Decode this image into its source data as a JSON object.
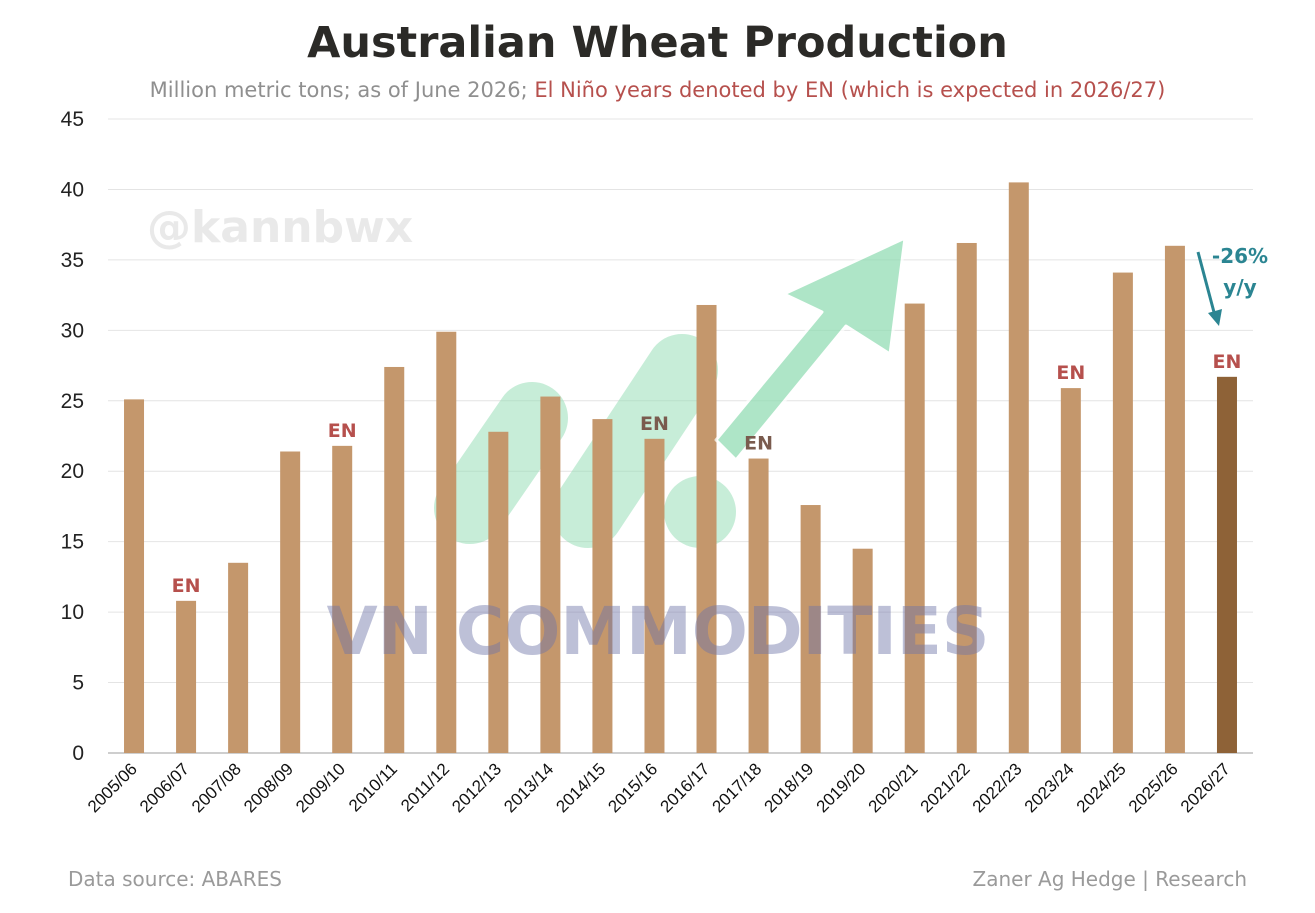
{
  "title": "Australian Wheat Production",
  "subtitle": {
    "part1": "Million metric tons; as of June 2026; ",
    "part2": "El Niño years denoted by EN (which is expected in 2026/27)"
  },
  "footer": {
    "source": "Data source: ABARES",
    "credit": "Zaner Ag Hedge | Research"
  },
  "watermarks": {
    "handle": "@kannbwx",
    "brand": "VN COMMODITIES"
  },
  "annotation": {
    "change_line1": "-26%",
    "change_line2": "y/y",
    "color": "#2b8592"
  },
  "colors": {
    "bar": "#c4976c",
    "bar_highlight": "#8e6237",
    "en_label_red": "#b6504d",
    "en_label_dark": "#7a5b4e",
    "grid": "#e4e4e4",
    "axis": "#bdbdbd",
    "arrow_green": "#8fdcb2"
  },
  "chart_data": {
    "type": "bar",
    "title": "Australian Wheat Production",
    "subtitle": "Million metric tons; as of June 2026; El Niño years denoted by EN (which is expected in 2026/27)",
    "xlabel": "",
    "ylabel": "",
    "ylim": [
      0,
      45
    ],
    "yticks": [
      0,
      5,
      10,
      15,
      20,
      25,
      30,
      35,
      40,
      45
    ],
    "grid": true,
    "categories": [
      "2005/06",
      "2006/07",
      "2007/08",
      "2008/09",
      "2009/10",
      "2010/11",
      "2011/12",
      "2012/13",
      "2013/14",
      "2014/15",
      "2015/16",
      "2016/17",
      "2017/18",
      "2018/19",
      "2019/20",
      "2020/21",
      "2021/22",
      "2022/23",
      "2023/24",
      "2024/25",
      "2025/26",
      "2026/27"
    ],
    "values": [
      25.1,
      10.8,
      13.5,
      21.4,
      21.8,
      27.4,
      29.9,
      22.8,
      25.3,
      23.7,
      22.3,
      31.8,
      20.9,
      17.6,
      14.5,
      31.9,
      36.2,
      40.5,
      25.9,
      34.1,
      36.0,
      26.7
    ],
    "annotations": [
      {
        "category": "2006/07",
        "text": "EN",
        "tone": "red"
      },
      {
        "category": "2009/10",
        "text": "EN",
        "tone": "red"
      },
      {
        "category": "2015/16",
        "text": "EN",
        "tone": "dark"
      },
      {
        "category": "2017/18",
        "text": "EN",
        "tone": "dark"
      },
      {
        "category": "2023/24",
        "text": "EN",
        "tone": "red"
      },
      {
        "category": "2026/27",
        "text": "EN",
        "tone": "red"
      }
    ],
    "highlight_category": "2026/27"
  }
}
